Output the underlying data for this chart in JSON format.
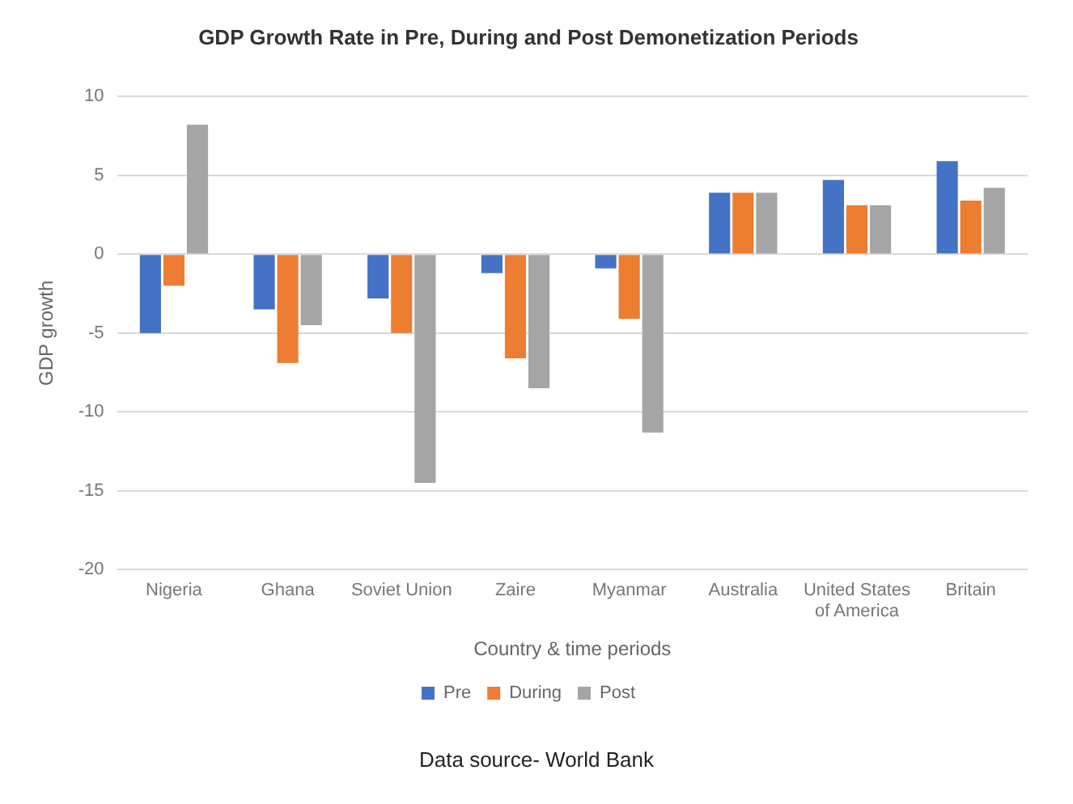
{
  "chart_data": {
    "type": "bar",
    "title": "GDP Growth Rate in Pre, During and Post Demonetization Periods",
    "xlabel": "Country & time periods",
    "ylabel": "GDP growth",
    "categories": [
      "Nigeria",
      "Ghana",
      "Soviet Union",
      "Zaire",
      "Myanmar",
      "Australia",
      "United States of America",
      "Britain"
    ],
    "series": [
      {
        "name": "Pre",
        "color": "#4472c4",
        "values": [
          -5,
          -3.5,
          -2.8,
          -1.2,
          -0.9,
          3.9,
          4.7,
          5.9
        ]
      },
      {
        "name": "During",
        "color": "#ed7d31",
        "values": [
          -2,
          -6.9,
          -5,
          -6.6,
          -4.1,
          3.9,
          3.1,
          3.4
        ]
      },
      {
        "name": "Post",
        "color": "#a5a5a5",
        "values": [
          8.2,
          -4.5,
          -14.5,
          -8.5,
          -11.3,
          3.9,
          3.1,
          4.2
        ]
      }
    ],
    "ylim": [
      -20,
      10
    ],
    "yticks": [
      -20,
      -15,
      -10,
      -5,
      0,
      5,
      10
    ],
    "grid": "y",
    "legend": "bottom",
    "annotations": [
      "Data source- World Bank"
    ]
  }
}
